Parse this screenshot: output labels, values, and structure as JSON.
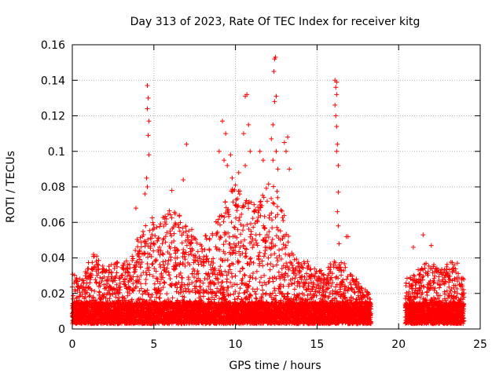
{
  "chart_data": {
    "type": "scatter",
    "title": "Day 313 of 2023, Rate Of TEC Index for receiver kitg",
    "xlabel": "GPS time / hours",
    "ylabel": "ROTI / TECUs",
    "xlim": [
      0,
      25
    ],
    "ylim": [
      0,
      0.16
    ],
    "x_ticks": [
      0,
      5,
      10,
      15,
      20,
      25
    ],
    "x_tick_labels": [
      "0",
      "5",
      "10",
      "15",
      "20",
      "25"
    ],
    "y_ticks": [
      0,
      0.02,
      0.04,
      0.06,
      0.08,
      0.1,
      0.12,
      0.14,
      0.16
    ],
    "y_tick_labels": [
      "0",
      "0.02",
      "0.04",
      "0.06",
      "0.08",
      "0.1",
      "0.12",
      "0.14",
      "0.16"
    ],
    "grid": true,
    "marker": "+",
    "marker_color": "#ff0000",
    "data_gap_hours": [
      18.3,
      20.4
    ],
    "series": [
      {
        "name": "ROTI",
        "envelope_x": [
          0.0,
          0.5,
          1.0,
          1.5,
          2.0,
          2.5,
          3.0,
          3.5,
          4.0,
          4.5,
          5.0,
          5.5,
          6.0,
          6.5,
          7.0,
          7.5,
          8.0,
          8.5,
          9.0,
          9.5,
          10.0,
          10.5,
          11.0,
          11.5,
          12.0,
          12.5,
          13.0,
          13.5,
          14.0,
          14.5,
          15.0,
          15.5,
          16.0,
          16.5,
          17.0,
          17.5,
          18.0,
          18.3,
          20.4,
          21.0,
          21.5,
          22.0,
          22.5,
          23.0,
          23.5,
          24.0
        ],
        "envelope_y": [
          0.03,
          0.025,
          0.035,
          0.04,
          0.03,
          0.035,
          0.035,
          0.04,
          0.05,
          0.06,
          0.06,
          0.06,
          0.065,
          0.065,
          0.06,
          0.05,
          0.045,
          0.06,
          0.065,
          0.07,
          0.08,
          0.07,
          0.07,
          0.07,
          0.08,
          0.08,
          0.06,
          0.04,
          0.035,
          0.035,
          0.03,
          0.03,
          0.04,
          0.04,
          0.03,
          0.025,
          0.02,
          0.015,
          0.025,
          0.03,
          0.035,
          0.035,
          0.03,
          0.035,
          0.035,
          0.025
        ],
        "spikes": [
          {
            "x": 4.6,
            "y": 0.137
          },
          {
            "x": 4.65,
            "y": 0.13
          },
          {
            "x": 4.6,
            "y": 0.124
          },
          {
            "x": 4.7,
            "y": 0.117
          },
          {
            "x": 4.65,
            "y": 0.109
          },
          {
            "x": 4.7,
            "y": 0.098
          },
          {
            "x": 4.55,
            "y": 0.085
          },
          {
            "x": 4.6,
            "y": 0.08
          },
          {
            "x": 4.45,
            "y": 0.076
          },
          {
            "x": 3.9,
            "y": 0.068
          },
          {
            "x": 6.1,
            "y": 0.078
          },
          {
            "x": 6.8,
            "y": 0.084
          },
          {
            "x": 7.0,
            "y": 0.104
          },
          {
            "x": 9.2,
            "y": 0.117
          },
          {
            "x": 9.4,
            "y": 0.11
          },
          {
            "x": 9.0,
            "y": 0.1
          },
          {
            "x": 9.3,
            "y": 0.095
          },
          {
            "x": 9.7,
            "y": 0.098
          },
          {
            "x": 9.5,
            "y": 0.092
          },
          {
            "x": 9.8,
            "y": 0.085
          },
          {
            "x": 10.2,
            "y": 0.088
          },
          {
            "x": 10.0,
            "y": 0.081
          },
          {
            "x": 10.7,
            "y": 0.132
          },
          {
            "x": 10.6,
            "y": 0.131
          },
          {
            "x": 10.8,
            "y": 0.115
          },
          {
            "x": 10.5,
            "y": 0.11
          },
          {
            "x": 10.9,
            "y": 0.1
          },
          {
            "x": 10.6,
            "y": 0.092
          },
          {
            "x": 11.5,
            "y": 0.1
          },
          {
            "x": 11.7,
            "y": 0.095
          },
          {
            "x": 12.45,
            "y": 0.153
          },
          {
            "x": 12.4,
            "y": 0.152
          },
          {
            "x": 12.35,
            "y": 0.145
          },
          {
            "x": 12.5,
            "y": 0.131
          },
          {
            "x": 12.4,
            "y": 0.128
          },
          {
            "x": 12.3,
            "y": 0.115
          },
          {
            "x": 12.2,
            "y": 0.107
          },
          {
            "x": 12.5,
            "y": 0.1
          },
          {
            "x": 12.3,
            "y": 0.095
          },
          {
            "x": 12.6,
            "y": 0.09
          },
          {
            "x": 13.0,
            "y": 0.105
          },
          {
            "x": 13.1,
            "y": 0.1
          },
          {
            "x": 13.2,
            "y": 0.108
          },
          {
            "x": 13.3,
            "y": 0.09
          },
          {
            "x": 16.1,
            "y": 0.14
          },
          {
            "x": 16.2,
            "y": 0.139
          },
          {
            "x": 16.15,
            "y": 0.136
          },
          {
            "x": 16.2,
            "y": 0.132
          },
          {
            "x": 16.1,
            "y": 0.126
          },
          {
            "x": 16.15,
            "y": 0.12
          },
          {
            "x": 16.2,
            "y": 0.114
          },
          {
            "x": 16.25,
            "y": 0.104
          },
          {
            "x": 16.2,
            "y": 0.1
          },
          {
            "x": 16.3,
            "y": 0.092
          },
          {
            "x": 16.3,
            "y": 0.077
          },
          {
            "x": 16.25,
            "y": 0.066
          },
          {
            "x": 16.3,
            "y": 0.058
          },
          {
            "x": 16.35,
            "y": 0.048
          },
          {
            "x": 16.8,
            "y": 0.052
          },
          {
            "x": 16.9,
            "y": 0.052
          },
          {
            "x": 21.5,
            "y": 0.053
          },
          {
            "x": 20.9,
            "y": 0.046
          },
          {
            "x": 23.6,
            "y": 0.037
          },
          {
            "x": 22.0,
            "y": 0.047
          },
          {
            "x": 1.3,
            "y": 0.042
          },
          {
            "x": 1.5,
            "y": 0.041
          }
        ]
      }
    ]
  }
}
